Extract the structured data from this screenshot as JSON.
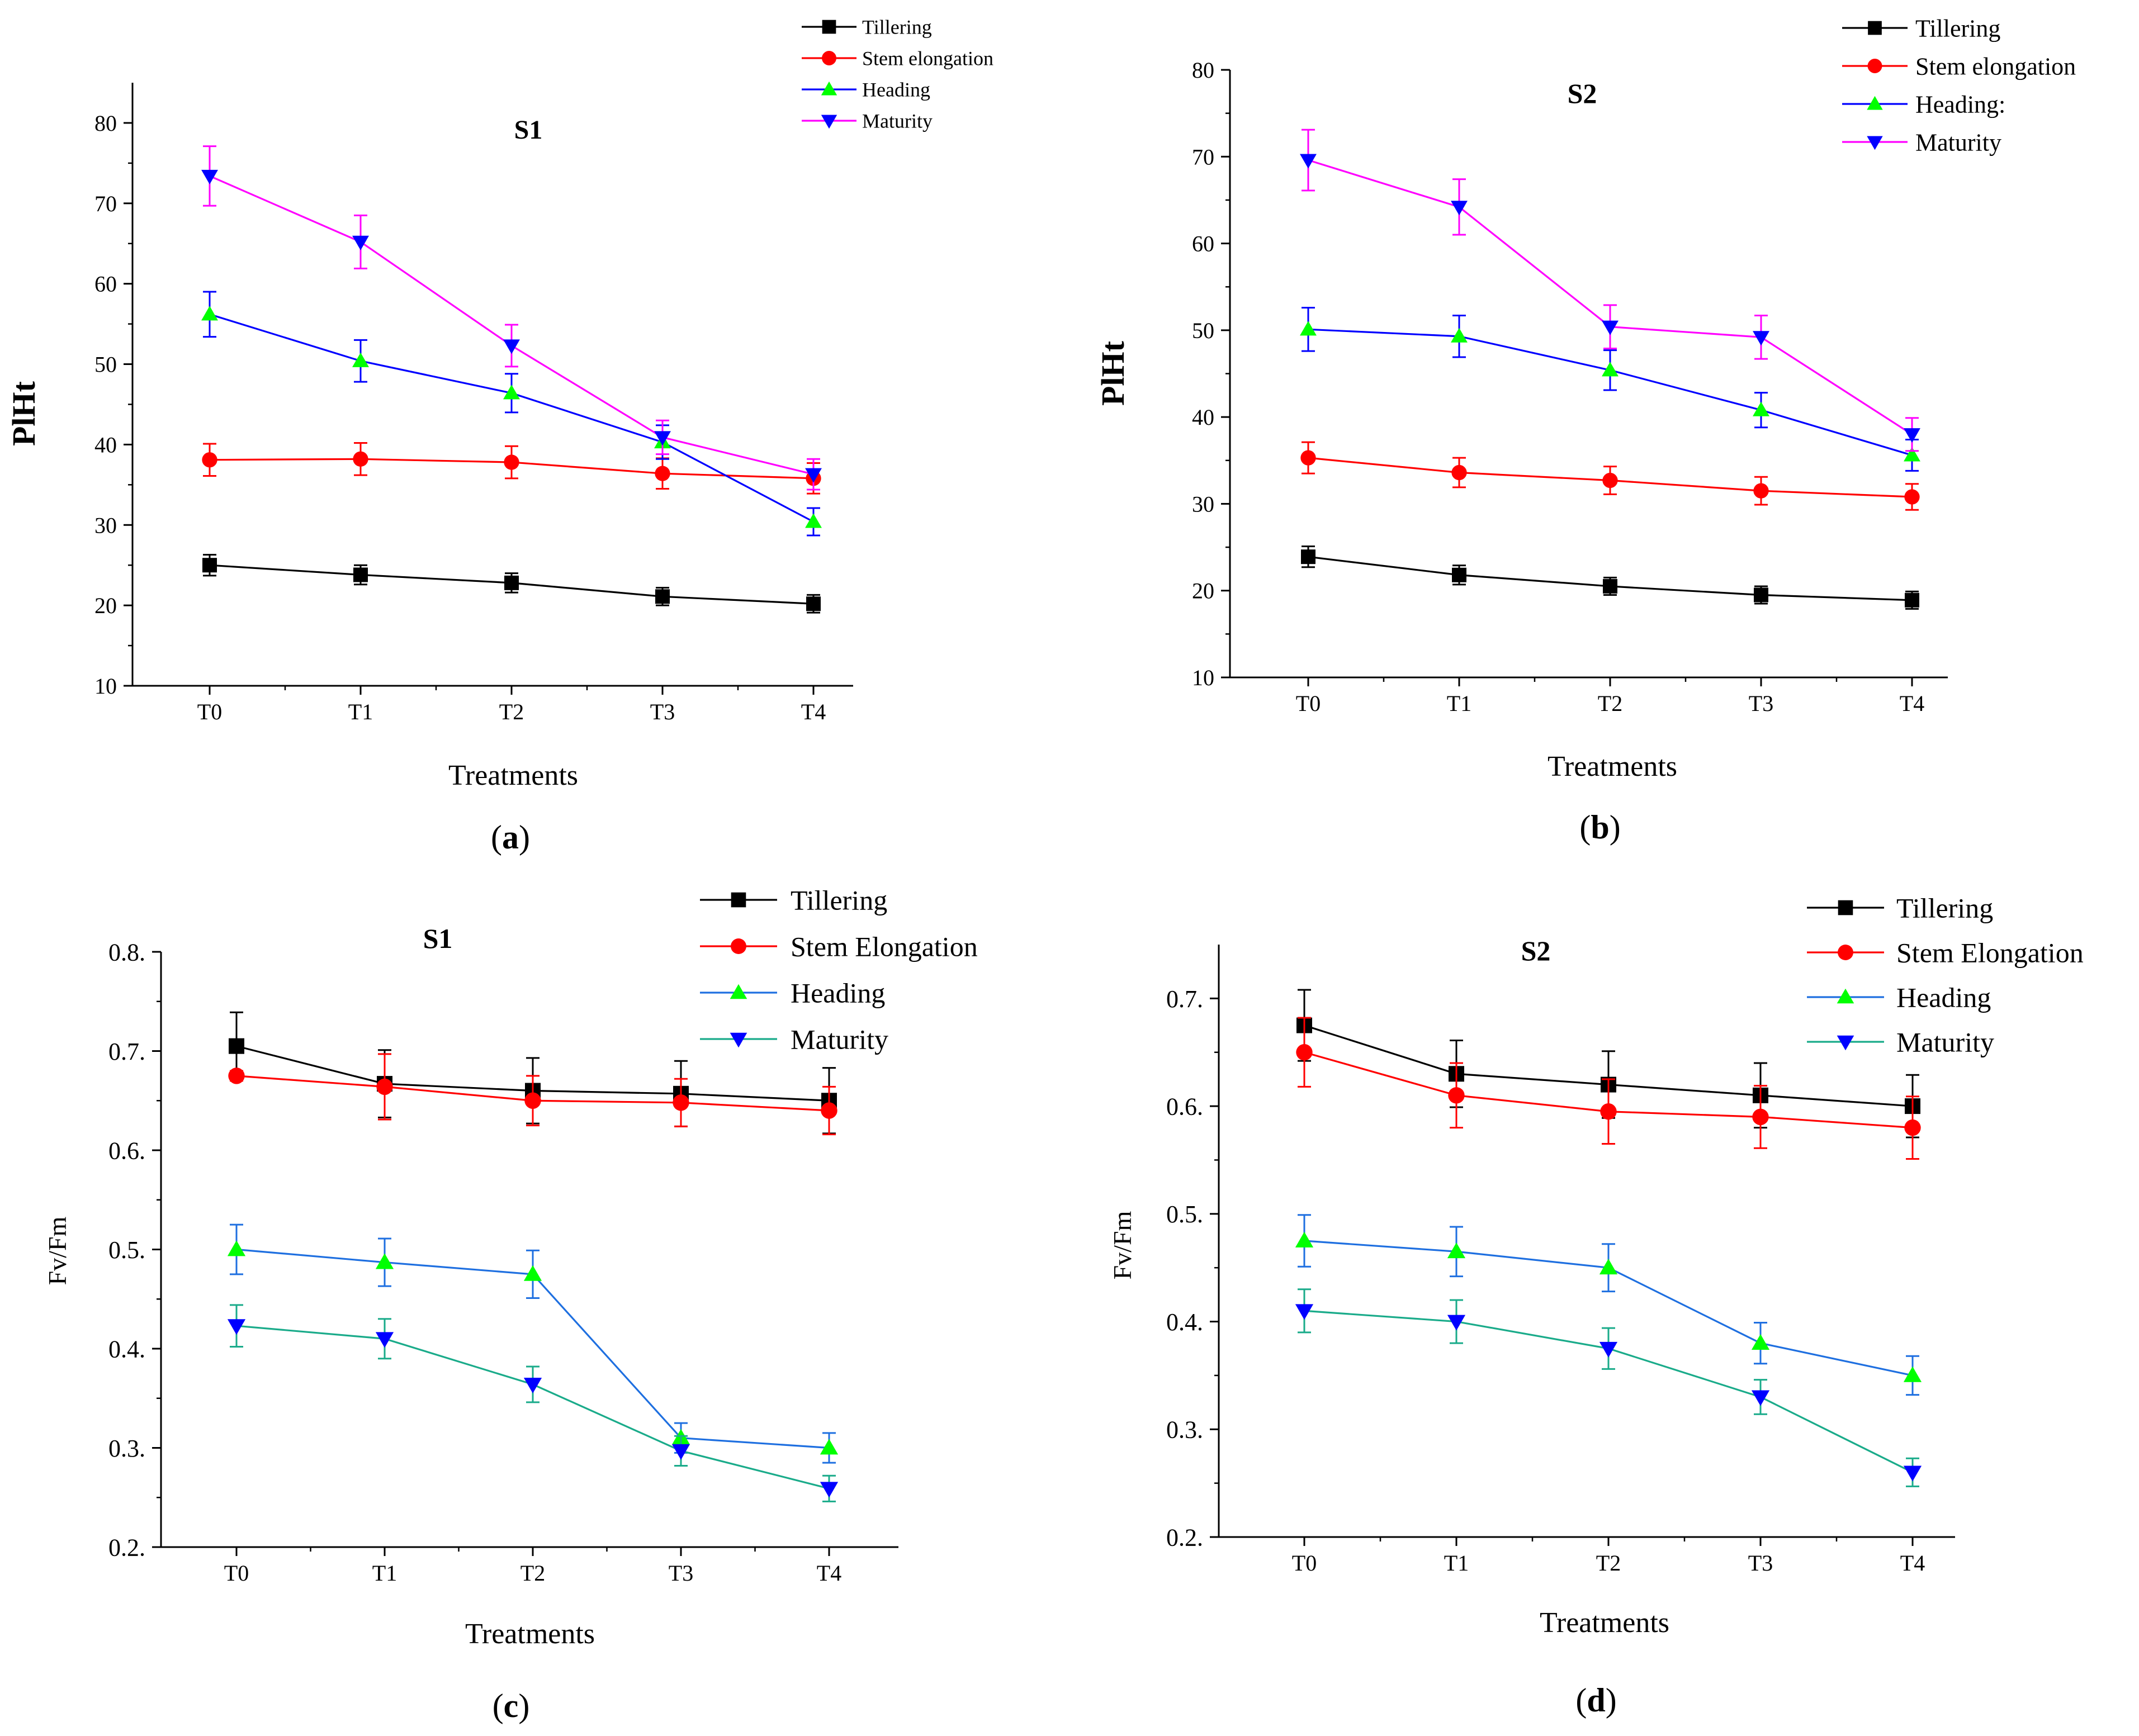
{
  "chart_data": [
    {
      "panel": "(a)",
      "type": "line",
      "title": "S1",
      "xlabel": "Treatments",
      "ylabel": "PlHt",
      "categories": [
        "T0",
        "T1",
        "T2",
        "T3",
        "T4"
      ],
      "ylim": [
        10,
        85
      ],
      "yticks": [
        10,
        20,
        30,
        40,
        50,
        60,
        70,
        80
      ],
      "ytick_labels": [
        "10",
        "20",
        "30",
        "40",
        "50",
        "60",
        "70",
        "80"
      ],
      "legend_position": "top-right, outside plot",
      "series": [
        {
          "name": "Tillering",
          "color": "#000000",
          "marker": "square",
          "values": [
            25.0,
            23.8,
            22.8,
            21.1,
            20.2
          ],
          "errors": [
            1.3,
            1.2,
            1.2,
            1.1,
            1.1
          ]
        },
        {
          "name": "Stem elongation",
          "color": "#ff0000",
          "marker": "circle",
          "values": [
            38.1,
            38.2,
            37.8,
            36.4,
            35.8
          ],
          "errors": [
            2.0,
            2.0,
            2.0,
            1.9,
            1.9
          ]
        },
        {
          "name": "Heading",
          "color": "#0000ff",
          "marker_color": "#00ff00",
          "marker": "triangle-up",
          "values": [
            56.2,
            50.4,
            46.4,
            40.3,
            30.4
          ],
          "errors": [
            2.8,
            2.6,
            2.4,
            2.1,
            1.7
          ]
        },
        {
          "name": "Maturity",
          "color": "#ff00ff",
          "marker_color": "#0000ff",
          "marker": "triangle-down",
          "values": [
            73.4,
            65.2,
            52.3,
            40.9,
            36.3
          ],
          "errors": [
            3.7,
            3.3,
            2.6,
            2.1,
            1.9
          ]
        }
      ]
    },
    {
      "panel": "(b)",
      "type": "line",
      "title": "S2",
      "xlabel": "Treatments",
      "ylabel": "PlHt",
      "categories": [
        "T0",
        "T1",
        "T2",
        "T3",
        "T4"
      ],
      "ylim": [
        10,
        80
      ],
      "yticks": [
        10,
        20,
        30,
        40,
        50,
        60,
        70,
        80
      ],
      "ytick_labels": [
        "10",
        "20",
        "30",
        "40",
        "50",
        "60",
        "70",
        "80"
      ],
      "legend_position": "top-right, outside plot",
      "series": [
        {
          "name": "Tillering",
          "color": "#000000",
          "marker": "square",
          "values": [
            23.9,
            21.8,
            20.5,
            19.5,
            18.9
          ],
          "errors": [
            1.2,
            1.1,
            1.0,
            1.0,
            1.0
          ]
        },
        {
          "name": "Stem elongation",
          "color": "#ff0000",
          "marker": "circle",
          "values": [
            35.3,
            33.6,
            32.7,
            31.5,
            30.8
          ],
          "errors": [
            1.8,
            1.7,
            1.6,
            1.6,
            1.5
          ]
        },
        {
          "name": "Heading:",
          "color": "#0000ff",
          "marker_color": "#00ff00",
          "marker": "triangle-up",
          "values": [
            50.1,
            49.3,
            45.4,
            40.8,
            35.6
          ],
          "errors": [
            2.5,
            2.4,
            2.3,
            2.0,
            1.8
          ]
        },
        {
          "name": "Maturity",
          "color": "#ff00ff",
          "marker_color": "#0000ff",
          "marker": "triangle-down",
          "values": [
            69.6,
            64.2,
            50.4,
            49.2,
            38.0
          ],
          "errors": [
            3.5,
            3.2,
            2.5,
            2.5,
            1.9
          ]
        }
      ]
    },
    {
      "panel": "(c)",
      "type": "line",
      "title": "S1",
      "xlabel": "Treatments",
      "ylabel": "Fv/Fm",
      "categories": [
        "T0",
        "T1",
        "T2",
        "T3",
        "T4"
      ],
      "ylim": [
        0.2,
        0.8
      ],
      "yticks": [
        0.2,
        0.3,
        0.4,
        0.5,
        0.6,
        0.7,
        0.8
      ],
      "ytick_labels": [
        "0.2.",
        "0.3.",
        "0.4.",
        "0.5.",
        "0.6.",
        "0.7.",
        "0.8."
      ],
      "legend_position": "top-right",
      "series": [
        {
          "name": "Tillering",
          "color": "#000000",
          "marker": "square",
          "values": [
            0.705,
            0.667,
            0.66,
            0.657,
            0.65
          ],
          "errors": [
            0.034,
            0.034,
            0.033,
            0.033,
            0.033
          ]
        },
        {
          "name": "Stem Elongation",
          "color": "#ff0000",
          "marker": "circle",
          "values": [
            0.675,
            0.664,
            0.65,
            0.648,
            0.64
          ],
          "errors": [
            0.005,
            0.033,
            0.025,
            0.024,
            0.024
          ]
        },
        {
          "name": "Heading",
          "color": "#1e6fe0",
          "marker_color": "#00ff00",
          "marker": "triangle-up",
          "values": [
            0.5,
            0.487,
            0.475,
            0.31,
            0.3
          ],
          "errors": [
            0.025,
            0.024,
            0.024,
            0.015,
            0.015
          ]
        },
        {
          "name": "Maturity",
          "color": "#1aab8a",
          "marker_color": "#0000ff",
          "marker": "triangle-down",
          "values": [
            0.423,
            0.41,
            0.364,
            0.297,
            0.259
          ],
          "errors": [
            0.021,
            0.02,
            0.018,
            0.015,
            0.013
          ]
        }
      ]
    },
    {
      "panel": "(d)",
      "type": "line",
      "title": "S2",
      "xlabel": "Treatments",
      "ylabel": "Fv/Fm",
      "categories": [
        "T0",
        "T1",
        "T2",
        "T3",
        "T4"
      ],
      "ylim": [
        0.2,
        0.75
      ],
      "yticks": [
        0.2,
        0.3,
        0.4,
        0.5,
        0.6,
        0.7
      ],
      "ytick_labels": [
        "0.2.",
        "0.3.",
        "0.4.",
        "0.5.",
        "0.6.",
        "0.7."
      ],
      "legend_position": "top-right",
      "series": [
        {
          "name": "Tillering",
          "color": "#000000",
          "marker": "square",
          "values": [
            0.675,
            0.63,
            0.62,
            0.61,
            0.6
          ],
          "errors": [
            0.033,
            0.031,
            0.031,
            0.03,
            0.029
          ]
        },
        {
          "name": "Stem Elongation",
          "color": "#ff0000",
          "marker": "circle",
          "values": [
            0.65,
            0.61,
            0.595,
            0.59,
            0.58
          ],
          "errors": [
            0.032,
            0.03,
            0.03,
            0.029,
            0.029
          ]
        },
        {
          "name": "Heading",
          "color": "#1e6fe0",
          "marker_color": "#00ff00",
          "marker": "triangle-up",
          "values": [
            0.475,
            0.465,
            0.45,
            0.38,
            0.35
          ],
          "errors": [
            0.024,
            0.023,
            0.022,
            0.019,
            0.018
          ]
        },
        {
          "name": "Maturity",
          "color": "#1aab8a",
          "marker_color": "#0000ff",
          "marker": "triangle-down",
          "values": [
            0.41,
            0.4,
            0.375,
            0.33,
            0.26
          ],
          "errors": [
            0.02,
            0.02,
            0.019,
            0.016,
            0.013
          ]
        }
      ]
    }
  ]
}
